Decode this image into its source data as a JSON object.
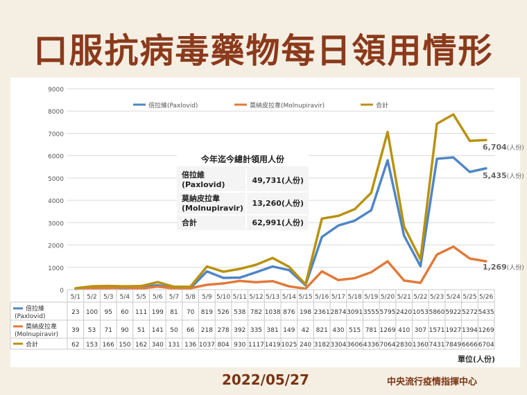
{
  "header": {
    "title": "口服抗病毒藥物每日領用情形"
  },
  "footer": {
    "date": "2022/05/27",
    "org": "中央流行疫情指揮中心",
    "unit": "單位(人份)"
  },
  "summary_box": {
    "title": "今年迄今總計領用人份",
    "rows": [
      {
        "label_line1": "倍拉維",
        "label_line2": "(Paxlovid)",
        "value": "49,731(人份)"
      },
      {
        "label_line1": "莫納皮拉韋",
        "label_line2": "(Molnupiravir)",
        "value": "13,260(人份)"
      },
      {
        "label_line1": "合計",
        "label_line2": "",
        "value": "62,991(人份)"
      }
    ]
  },
  "end_labels": [
    {
      "series": 2,
      "value": "6,704",
      "unit": "(人份)"
    },
    {
      "series": 0,
      "value": "5,435",
      "unit": "(人份)"
    },
    {
      "series": 1,
      "value": "1,269",
      "unit": "(人份)"
    }
  ],
  "chart_data": {
    "type": "line",
    "categories": [
      "5/1",
      "5/2",
      "5/3",
      "5/4",
      "5/5",
      "5/6",
      "5/7",
      "5/8",
      "5/9",
      "5/10",
      "5/11",
      "5/12",
      "5/13",
      "5/14",
      "5/15",
      "5/16",
      "5/17",
      "5/18",
      "5/19",
      "5/20",
      "5/21",
      "5/22",
      "5/23",
      "5/24",
      "5/25",
      "5/26"
    ],
    "ylim": [
      0,
      9000
    ],
    "yticks": [
      0,
      1000,
      2000,
      3000,
      4000,
      5000,
      6000,
      7000,
      8000,
      9000
    ],
    "grid": true,
    "legend_position": "top",
    "series": [
      {
        "name": "倍拉維(Paxlovid)",
        "table_name_line1": "倍拉維",
        "table_name_line2": "(Paxlovid)",
        "color": "#4f86c6",
        "values": [
          23,
          100,
          95,
          60,
          111,
          199,
          81,
          70,
          819,
          526,
          538,
          782,
          1038,
          876,
          198,
          2361,
          2874,
          3091,
          3555,
          5795,
          2420,
          1053,
          5860,
          5922,
          5272,
          5435
        ]
      },
      {
        "name": "莫納皮拉韋(Molnupiravir)",
        "table_name_line1": "莫納皮拉韋",
        "table_name_line2": "(Molnupiravir)",
        "color": "#e07a3a",
        "values": [
          39,
          53,
          71,
          90,
          51,
          141,
          50,
          66,
          218,
          278,
          392,
          335,
          381,
          149,
          42,
          821,
          430,
          515,
          781,
          1269,
          410,
          307,
          1571,
          1927,
          1394,
          1269
        ]
      },
      {
        "name": "合計",
        "table_name_line1": "合計",
        "table_name_line2": "",
        "color": "#b8920f",
        "values": [
          62,
          153,
          166,
          150,
          162,
          340,
          131,
          136,
          1037,
          804,
          930,
          1117,
          1419,
          1025,
          240,
          3182,
          3304,
          3606,
          4336,
          7064,
          2830,
          1360,
          7431,
          7849,
          6666,
          6704
        ]
      }
    ]
  }
}
